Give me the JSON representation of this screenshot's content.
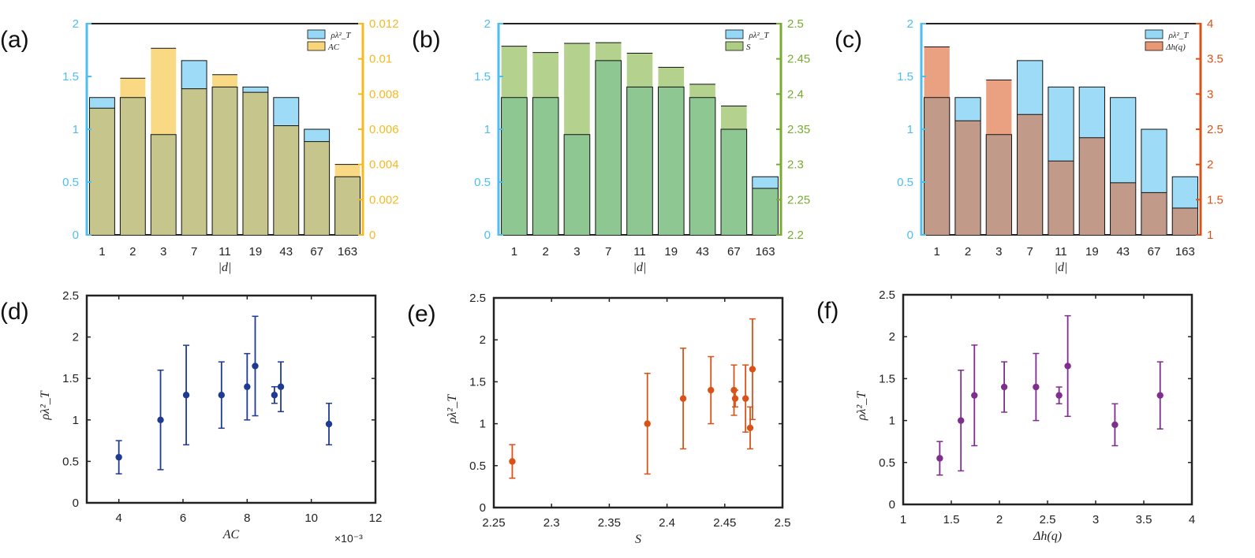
{
  "figure": {
    "colors": {
      "rho": "#4dbeee",
      "ac": "#f5b921",
      "s": "#77ac30",
      "dh": "#d95319",
      "overlap_ab": "#c5c58c",
      "overlap_b": "#8ec792",
      "overlap_c": "#c29a8a",
      "blue_pts": "#1f3a93",
      "orange_pts": "#d95319",
      "purple_pts": "#7e2f8e",
      "axis": "#222222"
    }
  },
  "chart_data": [
    {
      "panel": "(a)",
      "type": "bar",
      "categories": [
        "1",
        "2",
        "3",
        "7",
        "11",
        "19",
        "43",
        "67",
        "163"
      ],
      "xlabel": "|d|",
      "ylim_left": [
        0,
        2
      ],
      "yticks_left": [
        "0",
        "0.5",
        "1",
        "1.5",
        "2"
      ],
      "ylim_right": [
        0,
        0.012
      ],
      "yticks_right": [
        "0",
        "0.002",
        "0.004",
        "0.006",
        "0.008",
        "0.01",
        "0.012"
      ],
      "legend": [
        "ρλ²_T",
        "AC"
      ],
      "series": [
        {
          "name": "ρλ²_T",
          "axis": "left",
          "values": [
            1.3,
            1.3,
            0.95,
            1.65,
            1.4,
            1.4,
            1.3,
            1.0,
            0.55
          ]
        },
        {
          "name": "AC",
          "axis": "right",
          "values": [
            0.0072,
            0.0089,
            0.0106,
            0.0083,
            0.0091,
            0.0081,
            0.0062,
            0.0053,
            0.004
          ]
        }
      ]
    },
    {
      "panel": "(b)",
      "type": "bar",
      "categories": [
        "1",
        "2",
        "3",
        "7",
        "11",
        "19",
        "43",
        "67",
        "163"
      ],
      "xlabel": "|d|",
      "ylim_left": [
        0,
        2
      ],
      "yticks_left": [
        "0",
        "0.5",
        "1",
        "1.5",
        "2"
      ],
      "ylim_right": [
        2.2,
        2.5
      ],
      "yticks_right": [
        "2.2",
        "2.25",
        "2.3",
        "2.35",
        "2.4",
        "2.45",
        "2.5"
      ],
      "legend": [
        "ρλ²_T",
        "S"
      ],
      "series": [
        {
          "name": "ρλ²_T",
          "axis": "left",
          "values": [
            1.3,
            1.3,
            0.95,
            1.65,
            1.4,
            1.4,
            1.3,
            1.0,
            0.55
          ]
        },
        {
          "name": "S",
          "axis": "right",
          "values": [
            2.468,
            2.459,
            2.472,
            2.473,
            2.458,
            2.438,
            2.414,
            2.383,
            2.266
          ]
        }
      ]
    },
    {
      "panel": "(c)",
      "type": "bar",
      "categories": [
        "1",
        "2",
        "3",
        "7",
        "11",
        "19",
        "43",
        "67",
        "163"
      ],
      "xlabel": "|d|",
      "ylim_left": [
        0,
        2
      ],
      "yticks_left": [
        "0",
        "0.5",
        "1",
        "1.5",
        "2"
      ],
      "ylim_right": [
        1,
        4
      ],
      "yticks_right": [
        "1",
        "1.5",
        "2",
        "2.5",
        "3",
        "3.5",
        "4"
      ],
      "legend": [
        "ρλ²_T",
        "Δh(q)"
      ],
      "series": [
        {
          "name": "ρλ²_T",
          "axis": "left",
          "values": [
            1.3,
            1.3,
            0.95,
            1.65,
            1.4,
            1.4,
            1.3,
            1.0,
            0.55
          ]
        },
        {
          "name": "Δh(q)",
          "axis": "right",
          "values": [
            3.67,
            2.62,
            3.2,
            2.71,
            2.05,
            2.38,
            1.74,
            1.6,
            1.38
          ]
        }
      ]
    },
    {
      "panel": "(d)",
      "type": "scatter",
      "xlabel": "AC",
      "ylabel": "ρλ²_T",
      "x_exponent": "×10⁻³",
      "xlim": [
        3,
        12
      ],
      "ylim": [
        0,
        2.5
      ],
      "xticks": [
        "4",
        "6",
        "8",
        "10",
        "12"
      ],
      "yticks": [
        "0",
        "0.5",
        "1",
        "1.5",
        "2",
        "2.5"
      ],
      "points": [
        {
          "x": 4.0,
          "y": 0.55,
          "lo": 0.35,
          "hi": 0.75
        },
        {
          "x": 5.3,
          "y": 1.0,
          "lo": 0.4,
          "hi": 1.6
        },
        {
          "x": 6.1,
          "y": 1.3,
          "lo": 0.7,
          "hi": 1.9
        },
        {
          "x": 7.2,
          "y": 1.3,
          "lo": 0.9,
          "hi": 1.7
        },
        {
          "x": 8.0,
          "y": 1.4,
          "lo": 1.0,
          "hi": 1.8
        },
        {
          "x": 8.25,
          "y": 1.65,
          "lo": 1.05,
          "hi": 2.25
        },
        {
          "x": 8.85,
          "y": 1.3,
          "lo": 1.2,
          "hi": 1.4
        },
        {
          "x": 9.05,
          "y": 1.4,
          "lo": 1.1,
          "hi": 1.7
        },
        {
          "x": 10.55,
          "y": 0.95,
          "lo": 0.7,
          "hi": 1.2
        }
      ]
    },
    {
      "panel": "(e)",
      "type": "scatter",
      "xlabel": "S",
      "ylabel": "ρλ²_T",
      "xlim": [
        2.25,
        2.5
      ],
      "ylim": [
        0,
        2.5
      ],
      "xticks": [
        "2.25",
        "2.3",
        "2.35",
        "2.4",
        "2.45",
        "2.5"
      ],
      "yticks": [
        "0",
        "0.5",
        "1",
        "1.5",
        "2",
        "2.5"
      ],
      "points": [
        {
          "x": 2.266,
          "y": 0.55,
          "lo": 0.35,
          "hi": 0.75
        },
        {
          "x": 2.383,
          "y": 1.0,
          "lo": 0.4,
          "hi": 1.6
        },
        {
          "x": 2.414,
          "y": 1.3,
          "lo": 0.7,
          "hi": 1.9
        },
        {
          "x": 2.438,
          "y": 1.4,
          "lo": 1.0,
          "hi": 1.8
        },
        {
          "x": 2.458,
          "y": 1.4,
          "lo": 1.1,
          "hi": 1.7
        },
        {
          "x": 2.459,
          "y": 1.3,
          "lo": 1.2,
          "hi": 1.4
        },
        {
          "x": 2.468,
          "y": 1.3,
          "lo": 0.9,
          "hi": 1.7
        },
        {
          "x": 2.472,
          "y": 0.95,
          "lo": 0.7,
          "hi": 1.2
        },
        {
          "x": 2.474,
          "y": 1.65,
          "lo": 1.05,
          "hi": 2.25
        }
      ]
    },
    {
      "panel": "(f)",
      "type": "scatter",
      "xlabel": "Δh(q)",
      "ylabel": "ρλ²_T",
      "xlim": [
        1,
        4
      ],
      "ylim": [
        0,
        2.5
      ],
      "xticks": [
        "1",
        "1.5",
        "2",
        "2.5",
        "3",
        "3.5",
        "4"
      ],
      "yticks": [
        "0",
        "0.5",
        "1",
        "1.5",
        "2",
        "2.5"
      ],
      "points": [
        {
          "x": 1.38,
          "y": 0.55,
          "lo": 0.35,
          "hi": 0.75
        },
        {
          "x": 1.6,
          "y": 1.0,
          "lo": 0.4,
          "hi": 1.6
        },
        {
          "x": 1.74,
          "y": 1.3,
          "lo": 0.7,
          "hi": 1.9
        },
        {
          "x": 2.05,
          "y": 1.4,
          "lo": 1.1,
          "hi": 1.7
        },
        {
          "x": 2.38,
          "y": 1.4,
          "lo": 1.0,
          "hi": 1.8
        },
        {
          "x": 2.62,
          "y": 1.3,
          "lo": 1.2,
          "hi": 1.4
        },
        {
          "x": 2.71,
          "y": 1.65,
          "lo": 1.05,
          "hi": 2.25
        },
        {
          "x": 3.2,
          "y": 0.95,
          "lo": 0.7,
          "hi": 1.2
        },
        {
          "x": 3.67,
          "y": 1.3,
          "lo": 0.9,
          "hi": 1.7
        }
      ]
    }
  ]
}
